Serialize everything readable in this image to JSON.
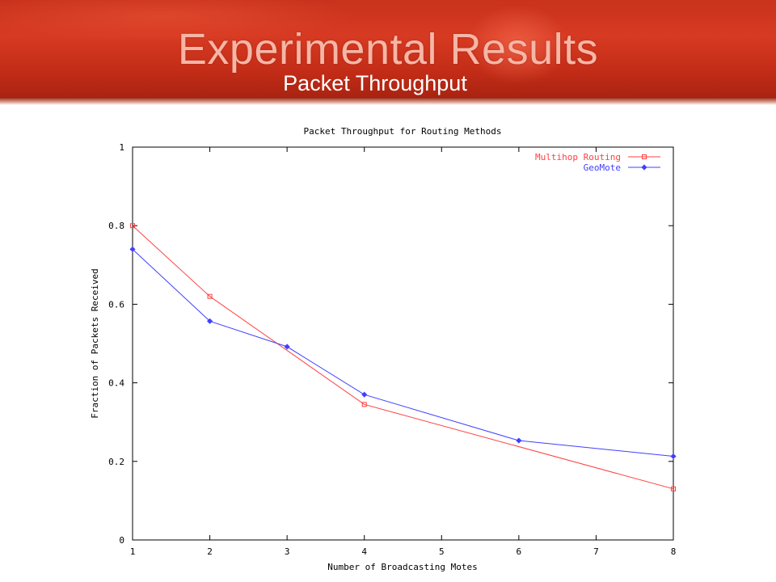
{
  "slide": {
    "title": "Experimental Results",
    "subtitle": "Packet Throughput"
  },
  "chart_data": {
    "type": "line",
    "title": "Packet Throughput for Routing Methods",
    "xlabel": "Number of Broadcasting Motes",
    "ylabel": "Fraction of Packets Received",
    "xlim": [
      1,
      8
    ],
    "ylim": [
      0,
      1
    ],
    "xticks": [
      "1",
      "2",
      "3",
      "4",
      "5",
      "6",
      "7",
      "8"
    ],
    "yticks": [
      "0",
      "0.2",
      "0.4",
      "0.6",
      "0.8",
      "1"
    ],
    "grid": false,
    "legend_position": "top-right",
    "series": [
      {
        "name": "Multihop Routing",
        "color": "#ff4040",
        "marker": "square",
        "x": [
          1,
          2,
          4,
          8
        ],
        "y": [
          0.8,
          0.62,
          0.345,
          0.13
        ]
      },
      {
        "name": "GeoMote",
        "color": "#4040ff",
        "marker": "diamond",
        "x": [
          1,
          2,
          3,
          4,
          6,
          8
        ],
        "y": [
          0.74,
          0.557,
          0.492,
          0.37,
          0.253,
          0.213
        ]
      }
    ]
  }
}
